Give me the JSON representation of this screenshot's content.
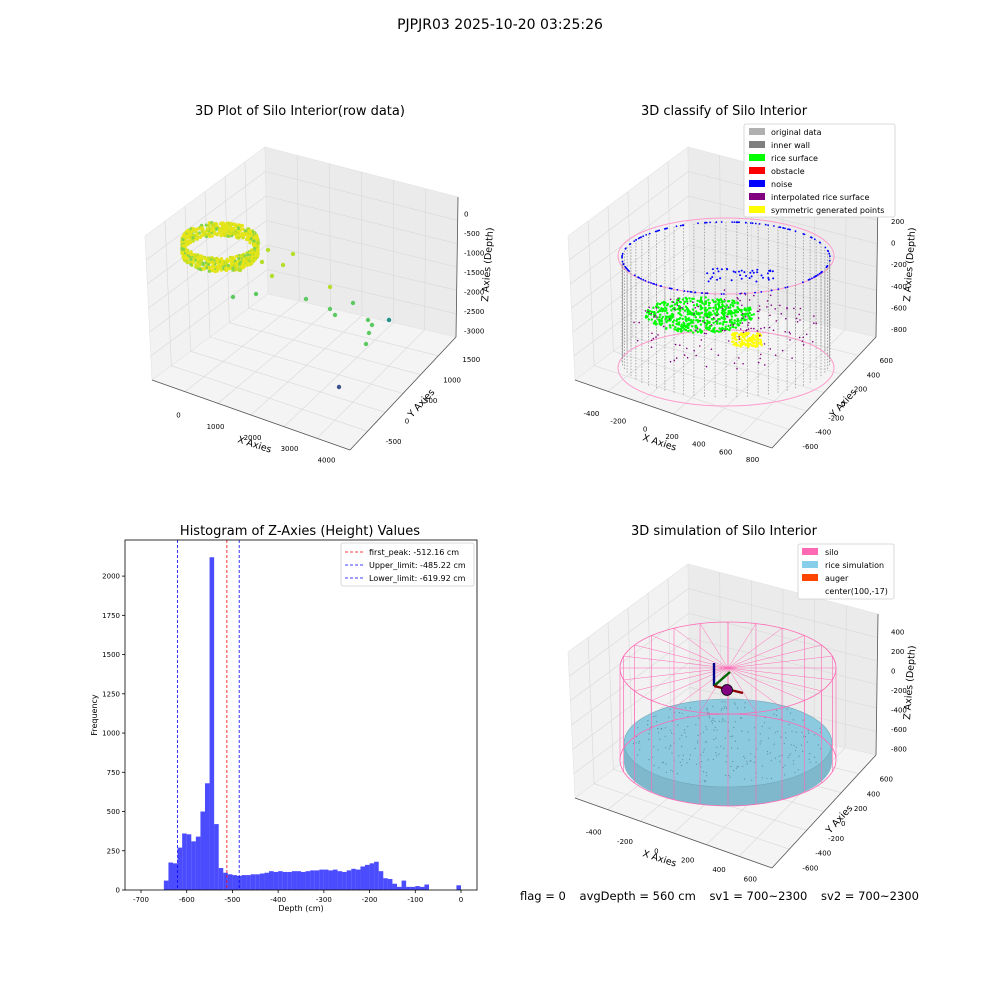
{
  "figure": {
    "suptitle": "PJPJR03 2025-10-20 03:25:26",
    "footer": {
      "flag": "flag = 0",
      "avg_depth": "avgDepth = 560 cm",
      "sv1": "sv1 = 700~2300",
      "sv2": "sv2 = 700~2300"
    }
  },
  "chart_data": [
    {
      "type": "scatter",
      "title": "3D Plot of Silo Interior(row data)",
      "xlabel": "X Axies",
      "ylabel": "Y Axies",
      "zlabel": "Z Axies (Depth)",
      "xticks": [
        "0",
        "1000",
        "2000",
        "3000",
        "4000"
      ],
      "yticks": [
        "-500",
        "0",
        "500",
        "1000",
        "1500"
      ],
      "zticks": [
        "0",
        "-500",
        "-1000",
        "-1500",
        "-2000",
        "-2500",
        "-3000"
      ],
      "colormap": "viridis",
      "grid": true
    },
    {
      "type": "scatter",
      "title": "3D classify of Silo Interior",
      "xlabel": "X Axies",
      "ylabel": "Y Axies",
      "zlabel": "Z Axies (Depth)",
      "xticks": [
        "-400",
        "-200",
        "0",
        "200",
        "400",
        "600",
        "800"
      ],
      "yticks": [
        "-600",
        "-400",
        "-200",
        "0",
        "200",
        "400",
        "600"
      ],
      "zticks": [
        "200",
        "0",
        "-200",
        "-400",
        "-600",
        "-800"
      ],
      "legend": [
        {
          "label": "original data",
          "color": "#b0b0b0"
        },
        {
          "label": "inner wall",
          "color": "#808080"
        },
        {
          "label": "rice surface",
          "color": "#00ff00"
        },
        {
          "label": "obstacle",
          "color": "#ff0000"
        },
        {
          "label": "noise",
          "color": "#0000ff"
        },
        {
          "label": "interpolated rice surface",
          "color": "#800080"
        },
        {
          "label": "symmetric generated points",
          "color": "#ffff00"
        }
      ],
      "legend_position": "top-right",
      "grid": true
    },
    {
      "type": "bar",
      "title": "Histogram of Z-Axies (Height) Values",
      "xlabel": "Depth (cm)",
      "ylabel": "Frequency",
      "xlim": [
        -735,
        35
      ],
      "ylim": [
        0,
        2230
      ],
      "xticks": [
        -700,
        -600,
        -500,
        -400,
        -300,
        -200,
        -100,
        0
      ],
      "yticks": [
        0,
        250,
        500,
        750,
        1000,
        1250,
        1500,
        1750,
        2000
      ],
      "bar_color": "#0000ff",
      "bin_edges": [
        -650,
        -640,
        -630,
        -620,
        -610,
        -600,
        -590,
        -580,
        -570,
        -560,
        -550,
        -540,
        -530,
        -520,
        -510,
        -500,
        -490,
        -480,
        -470,
        -460,
        -450,
        -440,
        -430,
        -420,
        -410,
        -400,
        -390,
        -380,
        -370,
        -360,
        -350,
        -340,
        -330,
        -320,
        -310,
        -300,
        -290,
        -280,
        -270,
        -260,
        -250,
        -240,
        -230,
        -220,
        -210,
        -200,
        -190,
        -180,
        -170,
        -160,
        -150,
        -140,
        -130,
        -120,
        -110,
        -100,
        -90,
        -80,
        -70,
        -60,
        -50,
        -40,
        -30,
        -20,
        -10,
        0
      ],
      "values": [
        60,
        175,
        170,
        270,
        360,
        355,
        310,
        340,
        500,
        680,
        2120,
        420,
        140,
        110,
        100,
        95,
        90,
        95,
        95,
        100,
        100,
        105,
        110,
        120,
        115,
        120,
        115,
        115,
        120,
        120,
        115,
        120,
        125,
        125,
        130,
        130,
        125,
        130,
        120,
        115,
        125,
        135,
        130,
        150,
        160,
        170,
        180,
        120,
        75,
        70,
        40,
        20,
        60,
        20,
        20,
        25,
        20,
        35,
        0,
        0,
        0,
        0,
        0,
        0,
        30
      ],
      "lines": [
        {
          "label": "first_peak: -512.16 cm",
          "x": -512.16,
          "color": "#ff0000"
        },
        {
          "label": "Upper_limit: -485.22 cm",
          "x": -485.22,
          "color": "#0000ff"
        },
        {
          "label": "Lower_limit: -619.92 cm",
          "x": -619.92,
          "color": "#0000ff"
        }
      ],
      "legend_position": "top-right"
    },
    {
      "type": "scatter",
      "title": "3D simulation of Silo Interior",
      "xlabel": "X Axies",
      "ylabel": "Y Axies",
      "zlabel": "Z Axies (Depth)",
      "xticks": [
        "-400",
        "-200",
        "0",
        "200",
        "400",
        "600"
      ],
      "yticks": [
        "-600",
        "-400",
        "-200",
        "0",
        "200",
        "400",
        "600"
      ],
      "zticks": [
        "400",
        "200",
        "0",
        "-200",
        "-400",
        "-600",
        "-800"
      ],
      "legend": [
        {
          "label": "silo",
          "color": "#ff69b4"
        },
        {
          "label": "rice simulation",
          "color": "#87ceeb"
        },
        {
          "label": "auger",
          "color": "#ff4500"
        },
        {
          "label": "center(100,-17)",
          "color": ""
        }
      ],
      "legend_position": "top-right",
      "grid": true
    }
  ]
}
